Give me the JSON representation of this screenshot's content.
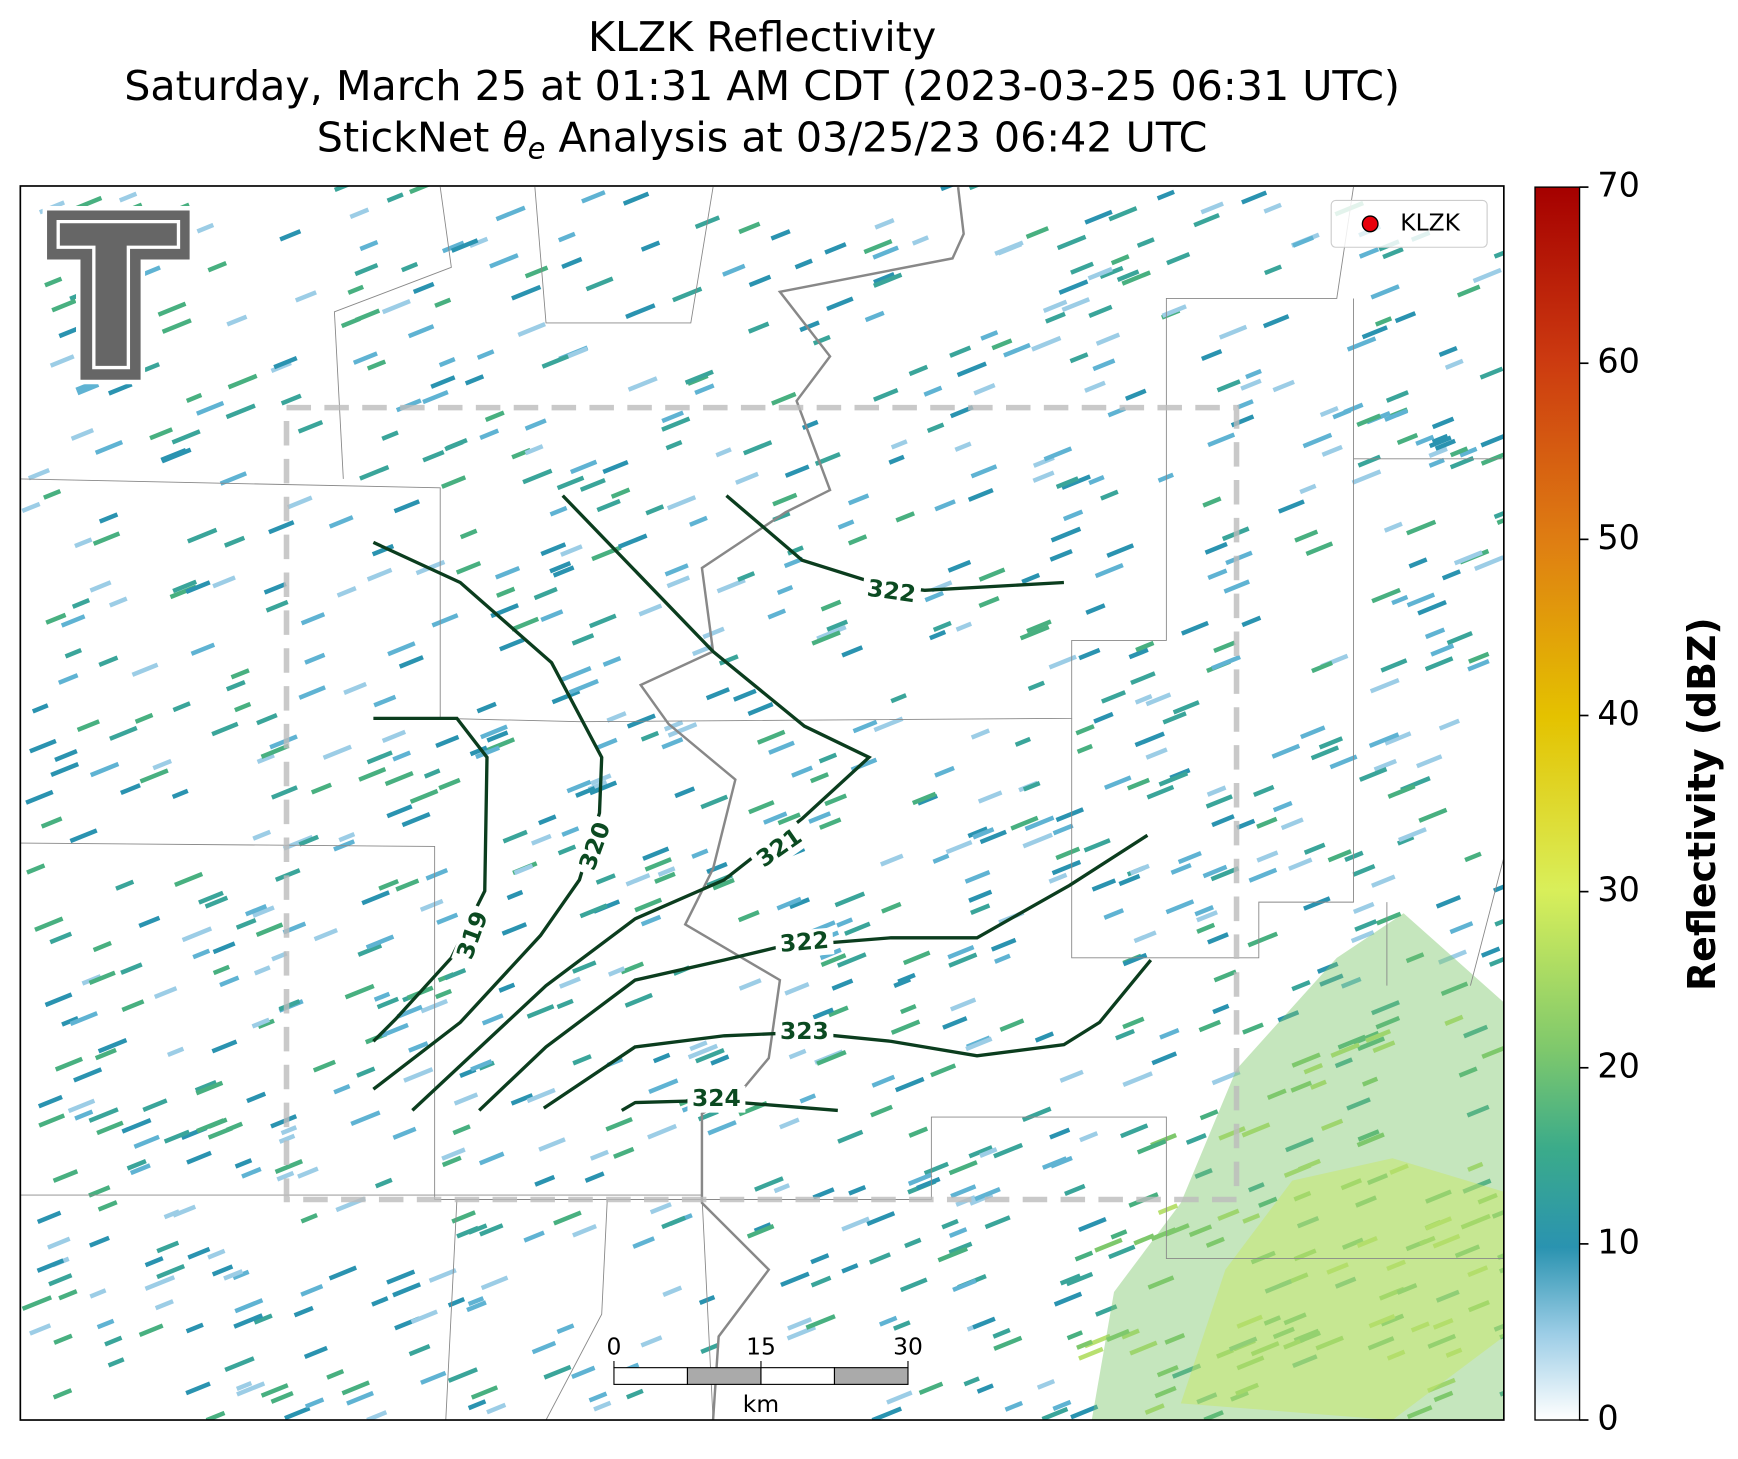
{
  "title_line1": "KLZK Reflectivity",
  "title_line2": "Saturday, March 25 at 01:31 AM CDT (2023-03-25 06:31 UTC)",
  "title_line3": {
    "prefix": "StickNet",
    "symbol": "θ",
    "subscript": "e",
    "suffix": "Analysis at 03/25/23 06:42 UTC"
  },
  "legend": {
    "label": "KLZK",
    "color": "#e8000b"
  },
  "colorbar": {
    "label": "Reflectivity (dBZ)",
    "lim": [
      0,
      70
    ],
    "ticks": [
      0,
      10,
      20,
      30,
      40,
      50,
      60,
      70
    ]
  },
  "contours": [
    {
      "value": 319
    },
    {
      "value": 320
    },
    {
      "value": 321
    },
    {
      "value": 322
    },
    {
      "value": 322
    },
    {
      "value": 323
    },
    {
      "value": 324
    }
  ],
  "scalebar": {
    "ticks": [
      0,
      15,
      30
    ],
    "unit": "km"
  }
}
